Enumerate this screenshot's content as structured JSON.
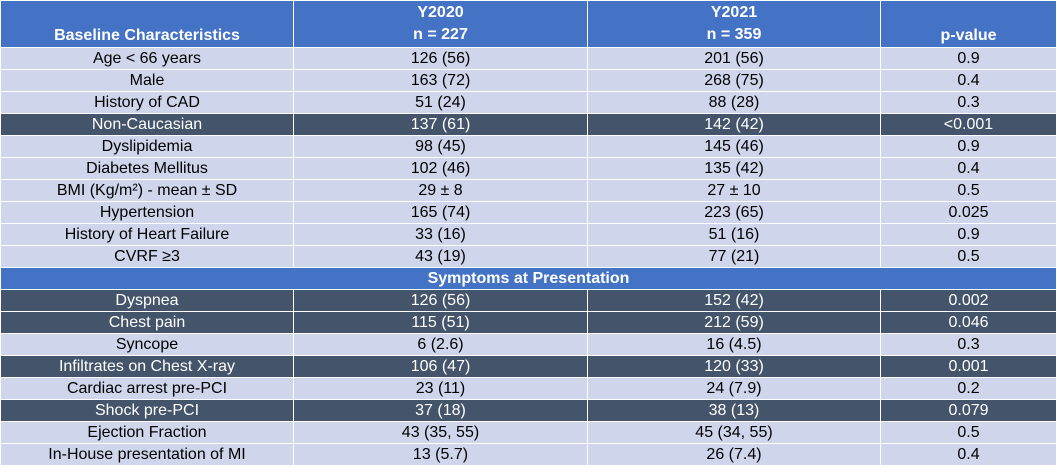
{
  "header": {
    "col1": "Baseline Characteristics",
    "col2_year": "Y2020",
    "col2_n": "n = 227",
    "col3_year": "Y2021",
    "col3_n": "n = 359",
    "col4": "p-value"
  },
  "baseline_rows": [
    {
      "label": "Age < 66 years",
      "y2020": "126 (56)",
      "y2021": "201 (56)",
      "p": "0.9",
      "dark": false
    },
    {
      "label": "Male",
      "y2020": "163 (72)",
      "y2021": "268 (75)",
      "p": "0.4",
      "dark": false
    },
    {
      "label": "History of CAD",
      "y2020": "51 (24)",
      "y2021": "88 (28)",
      "p": "0.3",
      "dark": false
    },
    {
      "label": "Non-Caucasian",
      "y2020": "137 (61)",
      "y2021": "142 (42)",
      "p": "<0.001",
      "dark": true
    },
    {
      "label": "Dyslipidemia",
      "y2020": "98 (45)",
      "y2021": "145 (46)",
      "p": "0.9",
      "dark": false
    },
    {
      "label": "Diabetes Mellitus",
      "y2020": "102 (46)",
      "y2021": "135 (42)",
      "p": "0.4",
      "dark": false
    },
    {
      "label": "BMI (Kg/m²) - mean ± SD",
      "y2020": "29 ± 8",
      "y2021": "27 ± 10",
      "p": "0.5",
      "dark": false
    },
    {
      "label": "Hypertension",
      "y2020": "165 (74)",
      "y2021": "223 (65)",
      "p": "0.025",
      "dark": false
    },
    {
      "label": "History of Heart Failure",
      "y2020": "33 (16)",
      "y2021": "51 (16)",
      "p": "0.9",
      "dark": false
    },
    {
      "label": "CVRF ≥3",
      "y2020": "43 (19)",
      "y2021": "77 (21)",
      "p": "0.5",
      "dark": false
    }
  ],
  "section_title": "Symptoms at Presentation",
  "symptom_rows": [
    {
      "label": "Dyspnea",
      "y2020": "126 (56)",
      "y2021": "152 (42)",
      "p": "0.002",
      "dark": true
    },
    {
      "label": "Chest pain",
      "y2020": "115 (51)",
      "y2021": "212 (59)",
      "p": "0.046",
      "dark": true
    },
    {
      "label": "Syncope",
      "y2020": "6 (2.6)",
      "y2021": "16 (4.5)",
      "p": "0.3",
      "dark": false
    },
    {
      "label": "Infiltrates on Chest X-ray",
      "y2020": "106 (47)",
      "y2021": "120 (33)",
      "p": "0.001",
      "dark": true
    },
    {
      "label": "Cardiac arrest pre-PCI",
      "y2020": "23 (11)",
      "y2021": "24 (7.9)",
      "p": "0.2",
      "dark": false
    },
    {
      "label": "Shock pre-PCI",
      "y2020": "37 (18)",
      "y2021": "38 (13)",
      "p": "0.079",
      "dark": true
    },
    {
      "label": "Ejection Fraction",
      "y2020": "43 (35, 55)",
      "y2021": "45 (34, 55)",
      "p": "0.5",
      "dark": false
    },
    {
      "label": "In-House presentation of MI",
      "y2020": "13 (5.7)",
      "y2021": "26 (7.4)",
      "p": "0.4",
      "dark": false
    }
  ]
}
